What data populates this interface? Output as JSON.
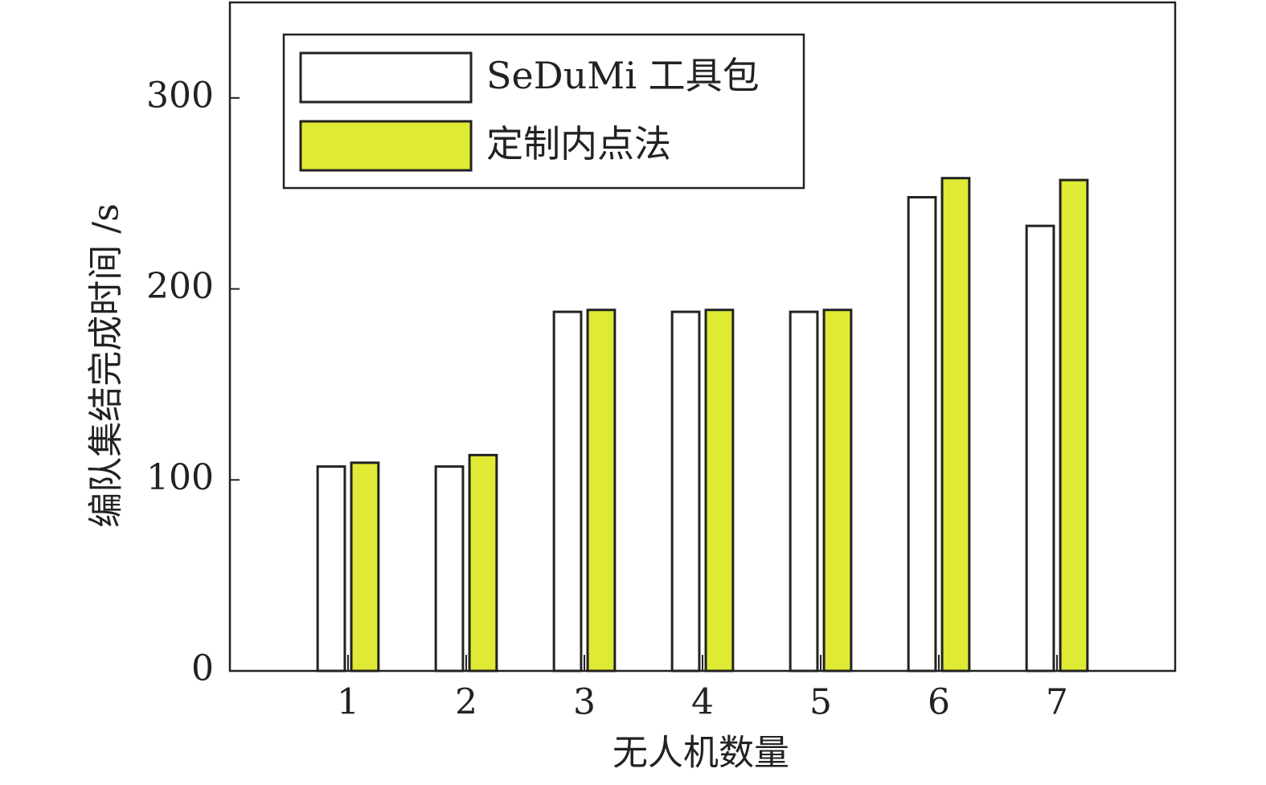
{
  "chart_data": {
    "type": "bar",
    "x_label": "无人机数量",
    "y_label": "编队集结完成时间 /s",
    "x": [
      1,
      2,
      3,
      4,
      5,
      6,
      7
    ],
    "xlim": [
      0,
      8
    ],
    "xticks": [
      1,
      2,
      3,
      4,
      5,
      6,
      7
    ],
    "ylim": [
      0,
      350
    ],
    "yticks": [
      0,
      100,
      200,
      300
    ],
    "legend": "top-left",
    "series": [
      {
        "name": "SeDuMi 工具包",
        "color": "#ffffff",
        "values": [
          107,
          107,
          188,
          188,
          188,
          248,
          233
        ]
      },
      {
        "name": "定制内点法",
        "color": "#dfea34",
        "values": [
          109,
          113,
          189,
          189,
          189,
          258,
          257
        ]
      }
    ]
  }
}
